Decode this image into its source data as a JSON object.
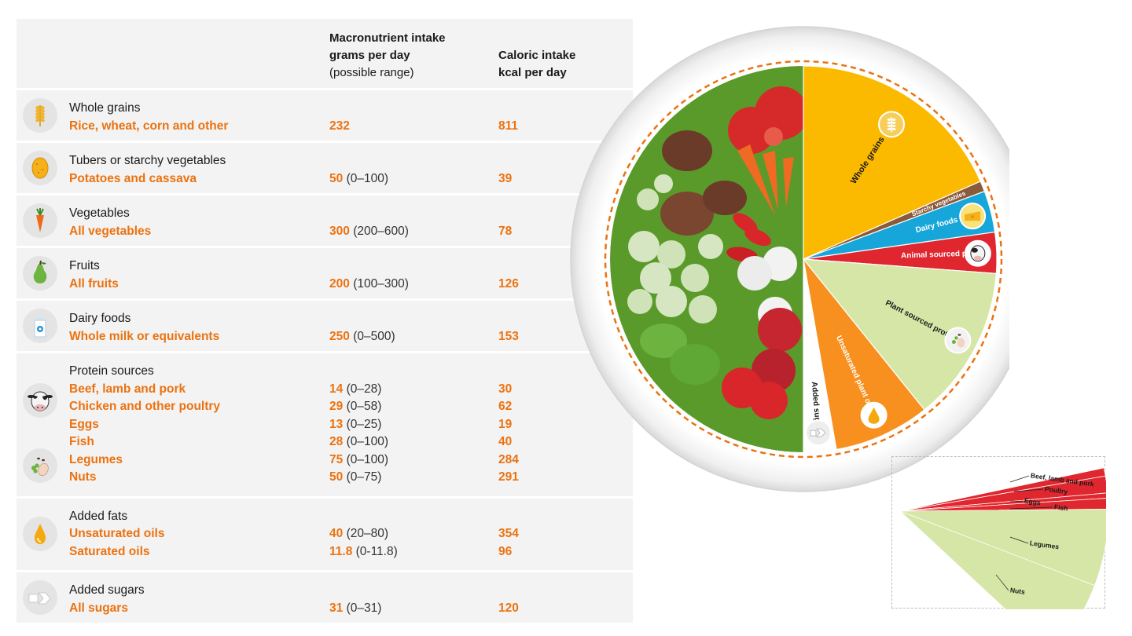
{
  "table": {
    "header": {
      "col_grams_title": "Macronutrient intake",
      "col_grams_title2": "grams per day",
      "col_grams_sub": "(possible range)",
      "col_kcal_title": "Caloric intake",
      "col_kcal_title2": "kcal per day"
    },
    "rows": [
      {
        "category": "Whole grains",
        "icon": "wheat-icon",
        "items": [
          {
            "name": "Rice, wheat, corn and other",
            "grams": "232",
            "range": "",
            "kcal": "811"
          }
        ]
      },
      {
        "category": "Tubers or starchy vegetables",
        "icon": "potato-icon",
        "items": [
          {
            "name": "Potatoes and cassava",
            "grams": "50",
            "range": "(0–100)",
            "kcal": "39"
          }
        ]
      },
      {
        "category": "Vegetables",
        "icon": "carrot-icon",
        "items": [
          {
            "name": "All vegetables",
            "grams": "300",
            "range": "(200–600)",
            "kcal": "78"
          }
        ]
      },
      {
        "category": "Fruits",
        "icon": "pear-icon",
        "items": [
          {
            "name": "All fruits",
            "grams": "200",
            "range": "(100–300)",
            "kcal": "126"
          }
        ]
      },
      {
        "category": "Dairy foods",
        "icon": "milk-carton-icon",
        "items": [
          {
            "name": "Whole milk or equivalents",
            "grams": "250",
            "range": "(0–500)",
            "kcal": "153"
          }
        ]
      },
      {
        "category": "Protein sources",
        "icon": "cow-icon",
        "items": [
          {
            "name": "Beef, lamb and pork",
            "grams": "14",
            "range": "(0–28)",
            "kcal": "30"
          },
          {
            "name": "Chicken and other poultry",
            "grams": "29",
            "range": "(0–58)",
            "kcal": "62"
          },
          {
            "name": "Eggs",
            "grams": "13",
            "range": "(0–25)",
            "kcal": "19"
          },
          {
            "name": "Fish",
            "grams": "28",
            "range": "(0–100)",
            "kcal": "40"
          },
          {
            "name": "Legumes",
            "grams": "75",
            "range": "(0–100)",
            "kcal": "284"
          },
          {
            "name": "Nuts",
            "grams": "50",
            "range": "(0–75)",
            "kcal": "291"
          }
        ]
      },
      {
        "category": "Added fats",
        "icon": "oil-drop-icon",
        "items": [
          {
            "name": "Unsaturated oils",
            "grams": "40",
            "range": "(20–80)",
            "kcal": "354"
          },
          {
            "name": "Saturated oils",
            "grams": "11.8",
            "range": "(0-11.8)",
            "kcal": "96"
          }
        ]
      },
      {
        "category": "Added sugars",
        "icon": "sugar-cubes-icon",
        "items": [
          {
            "name": "All sugars",
            "grams": "31",
            "range": "(0–31)",
            "kcal": "120"
          }
        ]
      }
    ]
  },
  "chart_data": [
    {
      "type": "pie",
      "labels": [
        "Whole grains",
        "Starchy vegetables",
        "Dairy foods",
        "Animal sourced protein",
        "Plant sourced protein",
        "Unsaturated plant oils",
        "Added sugars"
      ],
      "values": [
        811,
        39,
        153,
        151,
        575,
        354,
        120
      ],
      "vegetables_and_fruits_half": true,
      "colors": [
        "#fbb900",
        "#8a5a3a",
        "#17a6da",
        "#e0262e",
        "#d6e6a6",
        "#f7901e",
        "#ffffff"
      ]
    },
    {
      "type": "pie",
      "labels": [
        "Beef, lamb and pork",
        "Poultry",
        "Eggs",
        "Fish",
        "Legumes",
        "Nuts"
      ],
      "values": [
        30,
        62,
        19,
        40,
        284,
        291
      ],
      "colors": [
        "#e0262e",
        "#e0262e",
        "#e0262e",
        "#e0262e",
        "#d6e6a6",
        "#d6e6a6"
      ]
    }
  ]
}
